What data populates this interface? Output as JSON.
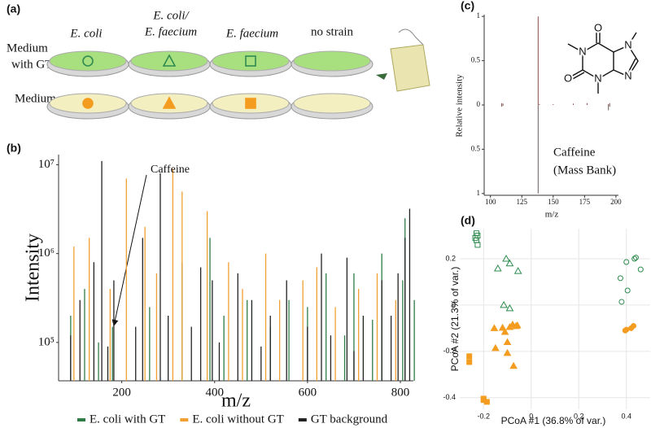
{
  "panel_a": {
    "label": "(a)",
    "columns": [
      [
        "E. coli"
      ],
      [
        "E. coli/",
        "E. faecium"
      ],
      [
        "E. faecium"
      ],
      [
        "no strain"
      ]
    ],
    "rows": [
      [
        "Medium",
        "with GT"
      ],
      [
        "Medium"
      ]
    ]
  },
  "chart_data": [
    {
      "type": "bar",
      "panel": "(b)",
      "x_label": "m/z",
      "y_label": "Intensity",
      "annotation": "Caffeine",
      "log_y": true,
      "xlim": [
        64,
        828
      ],
      "ylim": [
        37000,
        13000000
      ],
      "xticks": [
        200,
        400,
        600,
        800
      ],
      "yticks": [
        {
          "value": 100000,
          "label": "10⁵"
        },
        {
          "value": 1000000,
          "label": "10⁶"
        },
        {
          "value": 10000000,
          "label": "10⁷"
        }
      ],
      "series": [
        {
          "name": "E. coli with GT",
          "color": "#2e7d46",
          "x": [
            90,
            120,
            150,
            180,
            260,
            330,
            390,
            420,
            470,
            520,
            560,
            600,
            640,
            680,
            700,
            740,
            760,
            805,
            810,
            830
          ],
          "values": [
            200000,
            400000,
            100000,
            150000,
            250000,
            800000,
            1500000,
            200000,
            300000,
            150000,
            300000,
            250000,
            600000,
            120000,
            600000,
            180000,
            1000000,
            500000,
            2500000,
            300000
          ]
        },
        {
          "name": "E. coli without GT",
          "color": "#f0a030",
          "x": [
            97,
            130,
            175,
            210,
            250,
            275,
            310,
            330,
            384,
            430,
            460,
            510,
            540,
            590,
            620,
            660,
            710,
            750,
            790
          ],
          "values": [
            1200000,
            1500000,
            400000,
            7000000,
            2000000,
            600000,
            9000000,
            5000000,
            3000000,
            800000,
            400000,
            1000000,
            300000,
            500000,
            700000,
            250000,
            400000,
            600000,
            300000
          ]
        },
        {
          "name": "GT background",
          "color": "#222222",
          "x": [
            90,
            110,
            140,
            157,
            170,
            183,
            230,
            245,
            283,
            300,
            350,
            370,
            395,
            410,
            450,
            480,
            500,
            520,
            555,
            600,
            630,
            650,
            685,
            700,
            720,
            760,
            780,
            795,
            810,
            820
          ],
          "values": [
            120000,
            300000,
            800000,
            11000000,
            90000,
            500000,
            150000,
            1500000,
            8000000,
            200000,
            150000,
            700000,
            500000,
            100000,
            600000,
            300000,
            90000,
            200000,
            500000,
            150000,
            1000000,
            120000,
            900000,
            80000,
            200000,
            500000,
            200000,
            600000,
            1500000,
            3200000
          ]
        }
      ]
    },
    {
      "type": "bar",
      "panel": "(c)",
      "x_label": "m/z",
      "y_label": "Relative intensity",
      "annotation": [
        "Caffeine",
        "(Mass Bank)"
      ],
      "molecule": [
        "O",
        "N",
        "O",
        "N",
        "N",
        "N"
      ],
      "xlim": [
        95,
        202
      ],
      "ylim": [
        -1.02,
        1.02
      ],
      "xticks": [
        100,
        125,
        150,
        175,
        200
      ],
      "yticks": [
        {
          "value": -1,
          "label": "1"
        },
        {
          "value": -0.5,
          "label": "0.5"
        },
        0,
        0.5,
        1
      ],
      "series": [
        {
          "color": "#8a4a4a",
          "x": [
            109,
            110,
            138,
            139,
            150,
            166,
            177,
            194,
            195
          ],
          "values": [
            0.02,
            0.015,
            1,
            0.01,
            0.01,
            0.015,
            0.02,
            0.01,
            0.02
          ]
        },
        {
          "color": "#6a5a5a",
          "x": [
            109,
            110,
            138,
            194,
            195
          ],
          "values": [
            -0.02,
            -0.01,
            -1,
            -0.06,
            -0.02
          ]
        }
      ]
    },
    {
      "type": "scatter",
      "panel": "(d)",
      "x_label": "PCoA #1 (36.8% of var.)",
      "y_label": "PCoA #2 (21.3% of var.)",
      "xlim": [
        -0.3,
        0.5
      ],
      "ylim": [
        -0.45,
        0.33
      ],
      "grid": true,
      "xticks": [
        -0.2,
        0,
        0.2,
        0.4
      ],
      "yticks": [
        -0.4,
        -0.2,
        0,
        0.2
      ],
      "series": [
        {
          "color": "#2e8b4f",
          "marker": "square",
          "filled": false,
          "x": [
            -0.23,
            -0.225,
            -0.235,
            -0.23,
            -0.225
          ],
          "y": [
            0.31,
            0.3,
            0.29,
            0.28,
            0.26
          ]
        },
        {
          "color": "#2e8b4f",
          "marker": "triangle",
          "filled": false,
          "x": [
            -0.14,
            -0.105,
            -0.09,
            -0.055,
            -0.115,
            -0.09
          ],
          "y": [
            0.158,
            0.2,
            0.18,
            0.147,
            0.0,
            -0.014
          ]
        },
        {
          "color": "#2e8b4f",
          "marker": "circle",
          "filled": false,
          "x": [
            0.4,
            0.434,
            0.44,
            0.46,
            0.375,
            0.405,
            0.38
          ],
          "y": [
            0.186,
            0.2,
            0.205,
            0.154,
            0.116,
            0.063,
            0.014
          ]
        },
        {
          "color": "#f39c1f",
          "marker": "circle",
          "filled": true,
          "x": [
            0.395,
            0.42,
            0.43,
            0.4
          ],
          "y": [
            -0.11,
            -0.1,
            -0.09,
            -0.106
          ]
        },
        {
          "color": "#f39c1f",
          "marker": "triangle",
          "filled": true,
          "x": [
            -0.155,
            -0.12,
            -0.11,
            -0.09,
            -0.078,
            -0.064,
            -0.058,
            -0.1,
            -0.15,
            -0.1,
            -0.074
          ],
          "y": [
            -0.1,
            -0.098,
            -0.116,
            -0.095,
            -0.084,
            -0.091,
            -0.088,
            -0.16,
            -0.186,
            -0.207,
            -0.263
          ]
        },
        {
          "color": "#f39c1f",
          "marker": "square",
          "filled": true,
          "x": [
            -0.26,
            -0.26,
            -0.2,
            -0.186,
            -0.2
          ],
          "y": [
            -0.221,
            -0.246,
            -0.404,
            -0.418,
            -0.41
          ]
        }
      ]
    }
  ]
}
